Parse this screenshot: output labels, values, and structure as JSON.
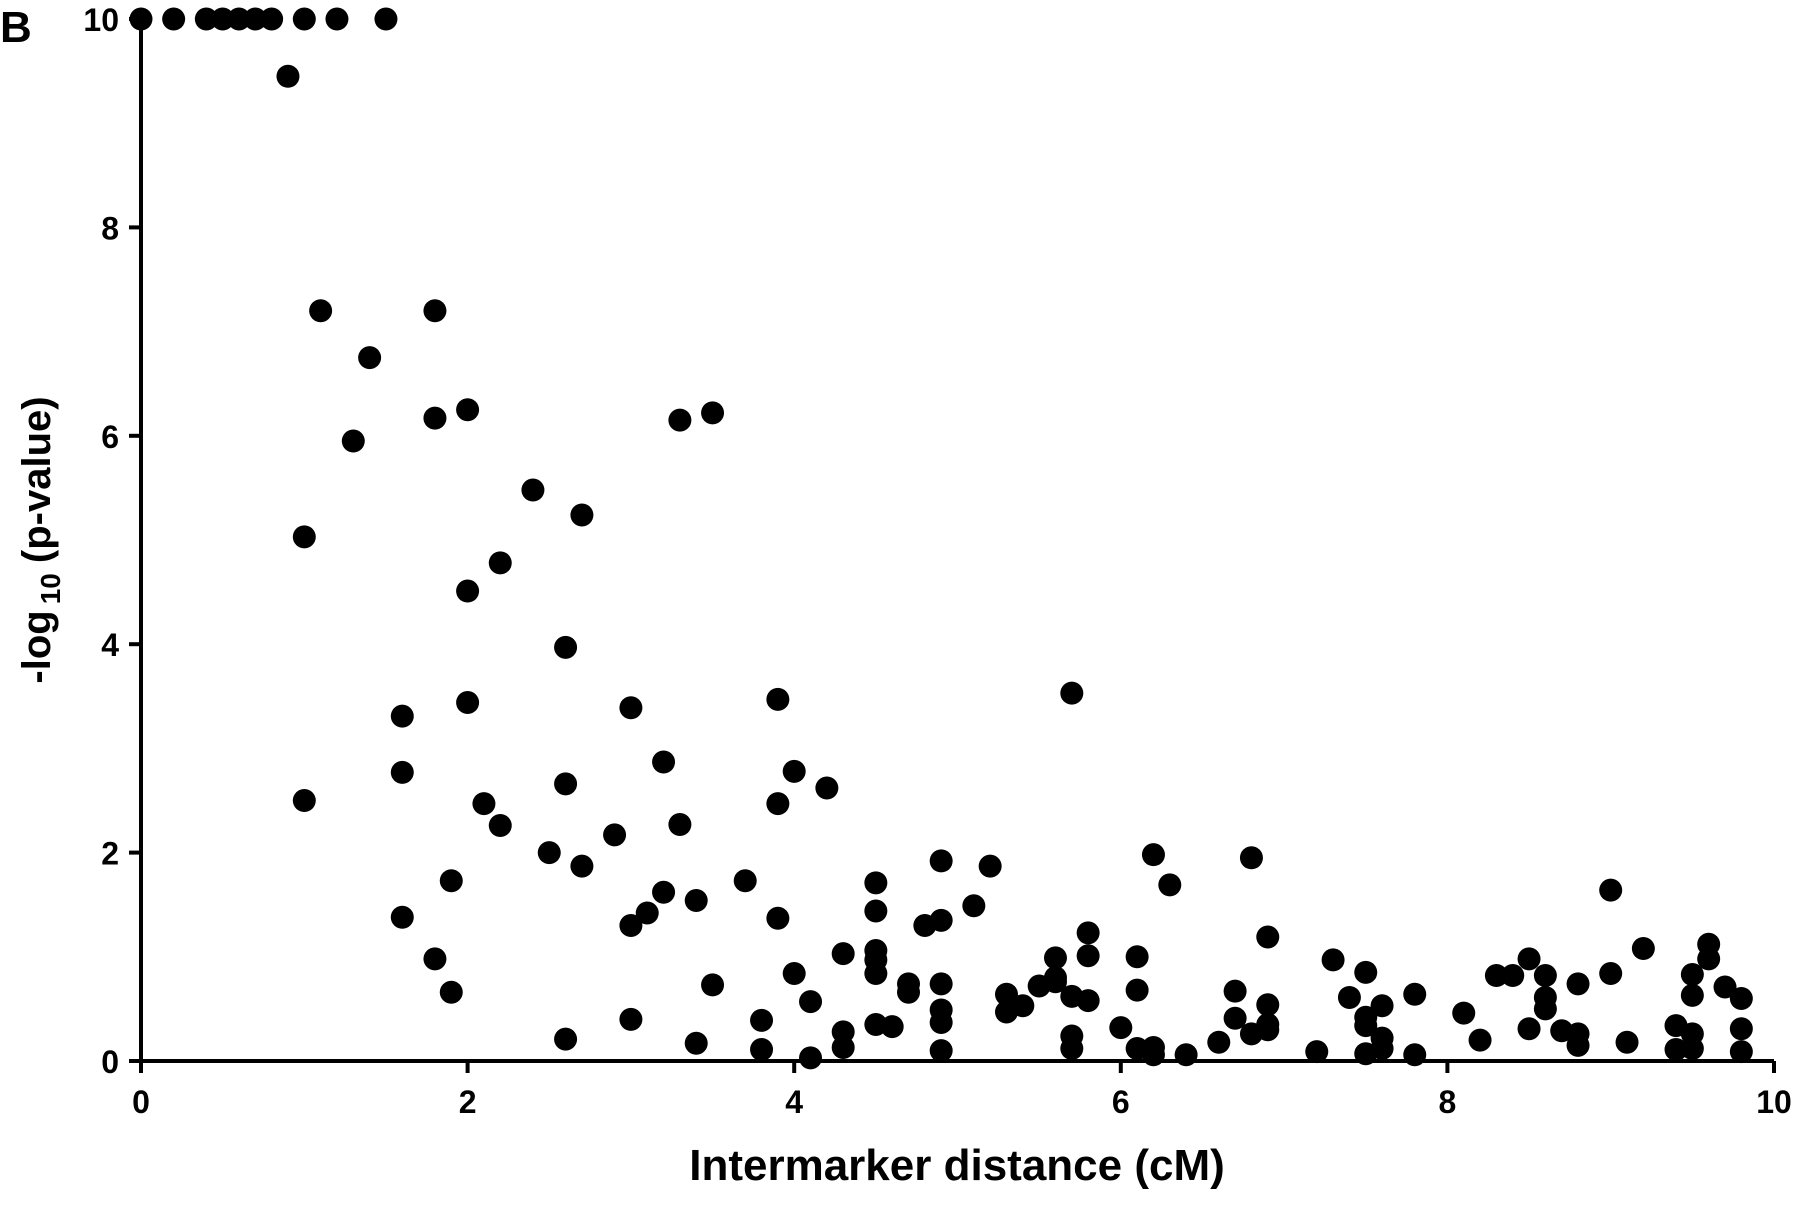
{
  "chart_data": {
    "type": "scatter",
    "panel_label": "B",
    "x_label": "Intermarker distance (cM)",
    "y_label": {
      "prefix": "-log",
      "subscript": "10",
      "suffix": "(p-value)"
    },
    "color": "#000000",
    "xlim": [
      0,
      10
    ],
    "xticks": [
      0,
      2,
      4,
      6,
      8,
      10
    ],
    "ylim": [
      0,
      10
    ],
    "yticks": [
      0,
      2,
      4,
      6,
      8,
      10
    ],
    "x": [
      0,
      0.2,
      0.4,
      0.5,
      0.6,
      0.7,
      0.8,
      1.0,
      1.2,
      1.5,
      0.9,
      1.1,
      1.8,
      1.4,
      1.3,
      1.8,
      2.0,
      1.0,
      2.4,
      2.2,
      2.0,
      2.7,
      3.3,
      3.5,
      2.6,
      1.6,
      2.0,
      3.0,
      3.9,
      5.7,
      1.6,
      1.0,
      2.1,
      2.2,
      2.6,
      3.2,
      3.3,
      2.9,
      2.5,
      2.7,
      1.9,
      4.0,
      3.9,
      4.2,
      3.7,
      3.2,
      3.1,
      3.0,
      3.4,
      3.9,
      1.6,
      1.8,
      1.9,
      3.0,
      2.6,
      3.4,
      3.5,
      3.8,
      3.8,
      4.0,
      4.1,
      4.1,
      4.3,
      4.3,
      4.3,
      4.5,
      4.5,
      4.5,
      4.5,
      4.5,
      4.5,
      4.6,
      4.7,
      4.7,
      4.8,
      4.9,
      4.9,
      4.9,
      4.9,
      4.9,
      4.9,
      5.1,
      5.2,
      5.3,
      5.3,
      5.4,
      5.5,
      5.6,
      5.6,
      5.6,
      5.7,
      5.7,
      5.7,
      5.8,
      5.8,
      5.8,
      6.0,
      6.1,
      6.1,
      6.1,
      6.2,
      6.2,
      6.2,
      6.3,
      6.4,
      6.6,
      6.7,
      6.7,
      6.8,
      6.8,
      6.9,
      6.9,
      6.9,
      6.9,
      7.2,
      7.3,
      7.4,
      7.5,
      7.5,
      7.5,
      7.5,
      7.6,
      7.6,
      7.6,
      7.8,
      7.8,
      8.1,
      8.2,
      8.3,
      8.4,
      8.5,
      8.5,
      8.6,
      8.6,
      8.6,
      8.7,
      8.8,
      8.8,
      8.8,
      9.0,
      9.0,
      9.1,
      9.2,
      9.4,
      9.4,
      9.5,
      9.5,
      9.5,
      9.5,
      9.6,
      9.6,
      9.7,
      9.8,
      9.8,
      9.8
    ],
    "values": [
      10,
      10,
      10,
      10,
      10,
      10,
      10,
      10,
      10,
      10,
      9.45,
      7.2,
      7.2,
      6.75,
      5.95,
      6.17,
      6.25,
      5.03,
      5.48,
      4.78,
      4.51,
      5.24,
      6.15,
      6.22,
      3.97,
      3.31,
      3.44,
      3.39,
      3.47,
      3.53,
      2.77,
      2.5,
      2.47,
      2.26,
      2.66,
      2.87,
      2.27,
      2.17,
      2.0,
      1.87,
      1.73,
      2.78,
      2.47,
      2.62,
      1.73,
      1.62,
      1.42,
      1.3,
      1.54,
      1.37,
      1.38,
      0.98,
      0.66,
      0.4,
      0.21,
      0.17,
      0.73,
      0.39,
      0.11,
      0.84,
      0.57,
      0.03,
      1.03,
      0.28,
      0.13,
      1.71,
      1.44,
      1.06,
      0.97,
      0.84,
      0.35,
      0.33,
      0.74,
      0.66,
      1.3,
      1.92,
      1.35,
      0.74,
      0.49,
      0.37,
      0.1,
      1.49,
      1.87,
      0.64,
      0.47,
      0.53,
      0.72,
      0.8,
      0.99,
      0.76,
      0.62,
      0.24,
      0.12,
      1.23,
      1.01,
      0.58,
      0.32,
      1.0,
      0.68,
      0.12,
      1.98,
      0.06,
      0.13,
      1.69,
      0.06,
      0.18,
      0.67,
      0.41,
      1.95,
      0.26,
      1.19,
      0.54,
      0.35,
      0.3,
      0.09,
      0.97,
      0.61,
      0.85,
      0.42,
      0.34,
      0.07,
      0.53,
      0.22,
      0.12,
      0.64,
      0.06,
      0.46,
      0.2,
      0.82,
      0.82,
      0.98,
      0.31,
      0.82,
      0.61,
      0.5,
      0.29,
      0.74,
      0.26,
      0.15,
      1.64,
      0.84,
      0.18,
      1.08,
      0.34,
      0.11,
      0.83,
      0.63,
      0.26,
      0.12,
      1.12,
      0.98,
      0.71,
      0.6,
      0.31,
      0.09
    ]
  }
}
